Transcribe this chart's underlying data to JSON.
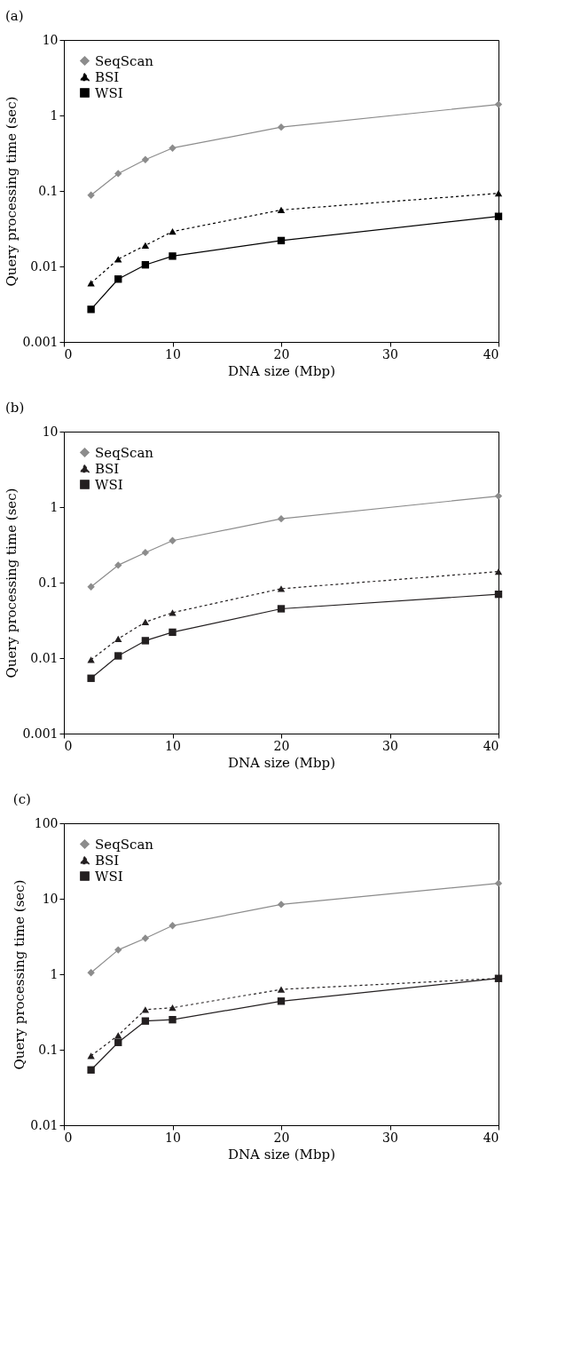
{
  "chart_data": [
    {
      "type": "line",
      "title": "(a)",
      "xlabel": "DNA size (Mbp)",
      "ylabel": "Query processing time (sec)",
      "x": [
        2.5,
        5,
        7.5,
        10,
        20,
        40
      ],
      "xlim": [
        0,
        40
      ],
      "xticks": [
        0,
        10,
        20,
        30,
        40
      ],
      "ylim": [
        0.001,
        10
      ],
      "yticks": [
        0.001,
        0.01,
        0.1,
        1,
        10
      ],
      "log": true,
      "grid": false,
      "legend": "top left",
      "series": [
        {
          "name": "SeqScan",
          "color": "#8c8c8c",
          "marker": "diamond",
          "line_style": "solid",
          "values": [
            0.088,
            0.17,
            0.26,
            0.37,
            0.7,
            1.4
          ]
        },
        {
          "name": "BSI",
          "color": "#000000",
          "marker": "triangle",
          "line_style": "dotted",
          "values": [
            0.006,
            0.0125,
            0.019,
            0.029,
            0.056,
            0.093
          ]
        },
        {
          "name": "WSI",
          "color": "#000000",
          "marker": "square",
          "line_style": "solid",
          "values": [
            0.0027,
            0.0068,
            0.0105,
            0.0137,
            0.022,
            0.046
          ]
        }
      ]
    },
    {
      "type": "line",
      "title": "(b)",
      "xlabel": "DNA size (Mbp)",
      "ylabel": "Query processing time (sec)",
      "x": [
        2.5,
        5,
        7.5,
        10,
        20,
        40
      ],
      "xlim": [
        0,
        40
      ],
      "xticks": [
        0,
        10,
        20,
        30,
        40
      ],
      "ylim": [
        0.001,
        10
      ],
      "yticks": [
        0.001,
        0.01,
        0.1,
        1,
        10
      ],
      "log": true,
      "grid": false,
      "legend": "top left",
      "series": [
        {
          "name": "SeqScan",
          "color": "#8c8c8c",
          "marker": "diamond",
          "line_style": "solid",
          "values": [
            0.088,
            0.17,
            0.25,
            0.36,
            0.7,
            1.4
          ]
        },
        {
          "name": "BSI",
          "color": "#231f20",
          "marker": "triangle",
          "line_style": "dotted",
          "values": [
            0.0095,
            0.018,
            0.03,
            0.04,
            0.083,
            0.14
          ]
        },
        {
          "name": "WSI",
          "color": "#231f20",
          "marker": "square",
          "line_style": "solid",
          "values": [
            0.0054,
            0.0107,
            0.017,
            0.022,
            0.045,
            0.07
          ]
        }
      ]
    },
    {
      "type": "line",
      "title": "(c)",
      "xlabel": "DNA size (Mbp)",
      "ylabel": "Query processing time (sec)",
      "x": [
        2.5,
        5,
        7.5,
        10,
        20,
        40
      ],
      "xlim": [
        0,
        40
      ],
      "xticks": [
        0,
        10,
        20,
        30,
        40
      ],
      "ylim": [
        0.01,
        100
      ],
      "yticks": [
        0.01,
        0.1,
        1,
        10,
        100
      ],
      "log": true,
      "grid": false,
      "legend": "top left",
      "series": [
        {
          "name": "SeqScan",
          "color": "#8c8c8c",
          "marker": "diamond",
          "line_style": "solid",
          "values": [
            1.05,
            2.1,
            3.0,
            4.4,
            8.4,
            16
          ]
        },
        {
          "name": "BSI",
          "color": "#231f20",
          "marker": "triangle",
          "line_style": "dotted",
          "values": [
            0.083,
            0.155,
            0.34,
            0.36,
            0.63,
            0.88
          ]
        },
        {
          "name": "WSI",
          "color": "#231f20",
          "marker": "square",
          "line_style": "solid",
          "values": [
            0.054,
            0.125,
            0.24,
            0.25,
            0.44,
            0.88
          ]
        }
      ]
    }
  ]
}
